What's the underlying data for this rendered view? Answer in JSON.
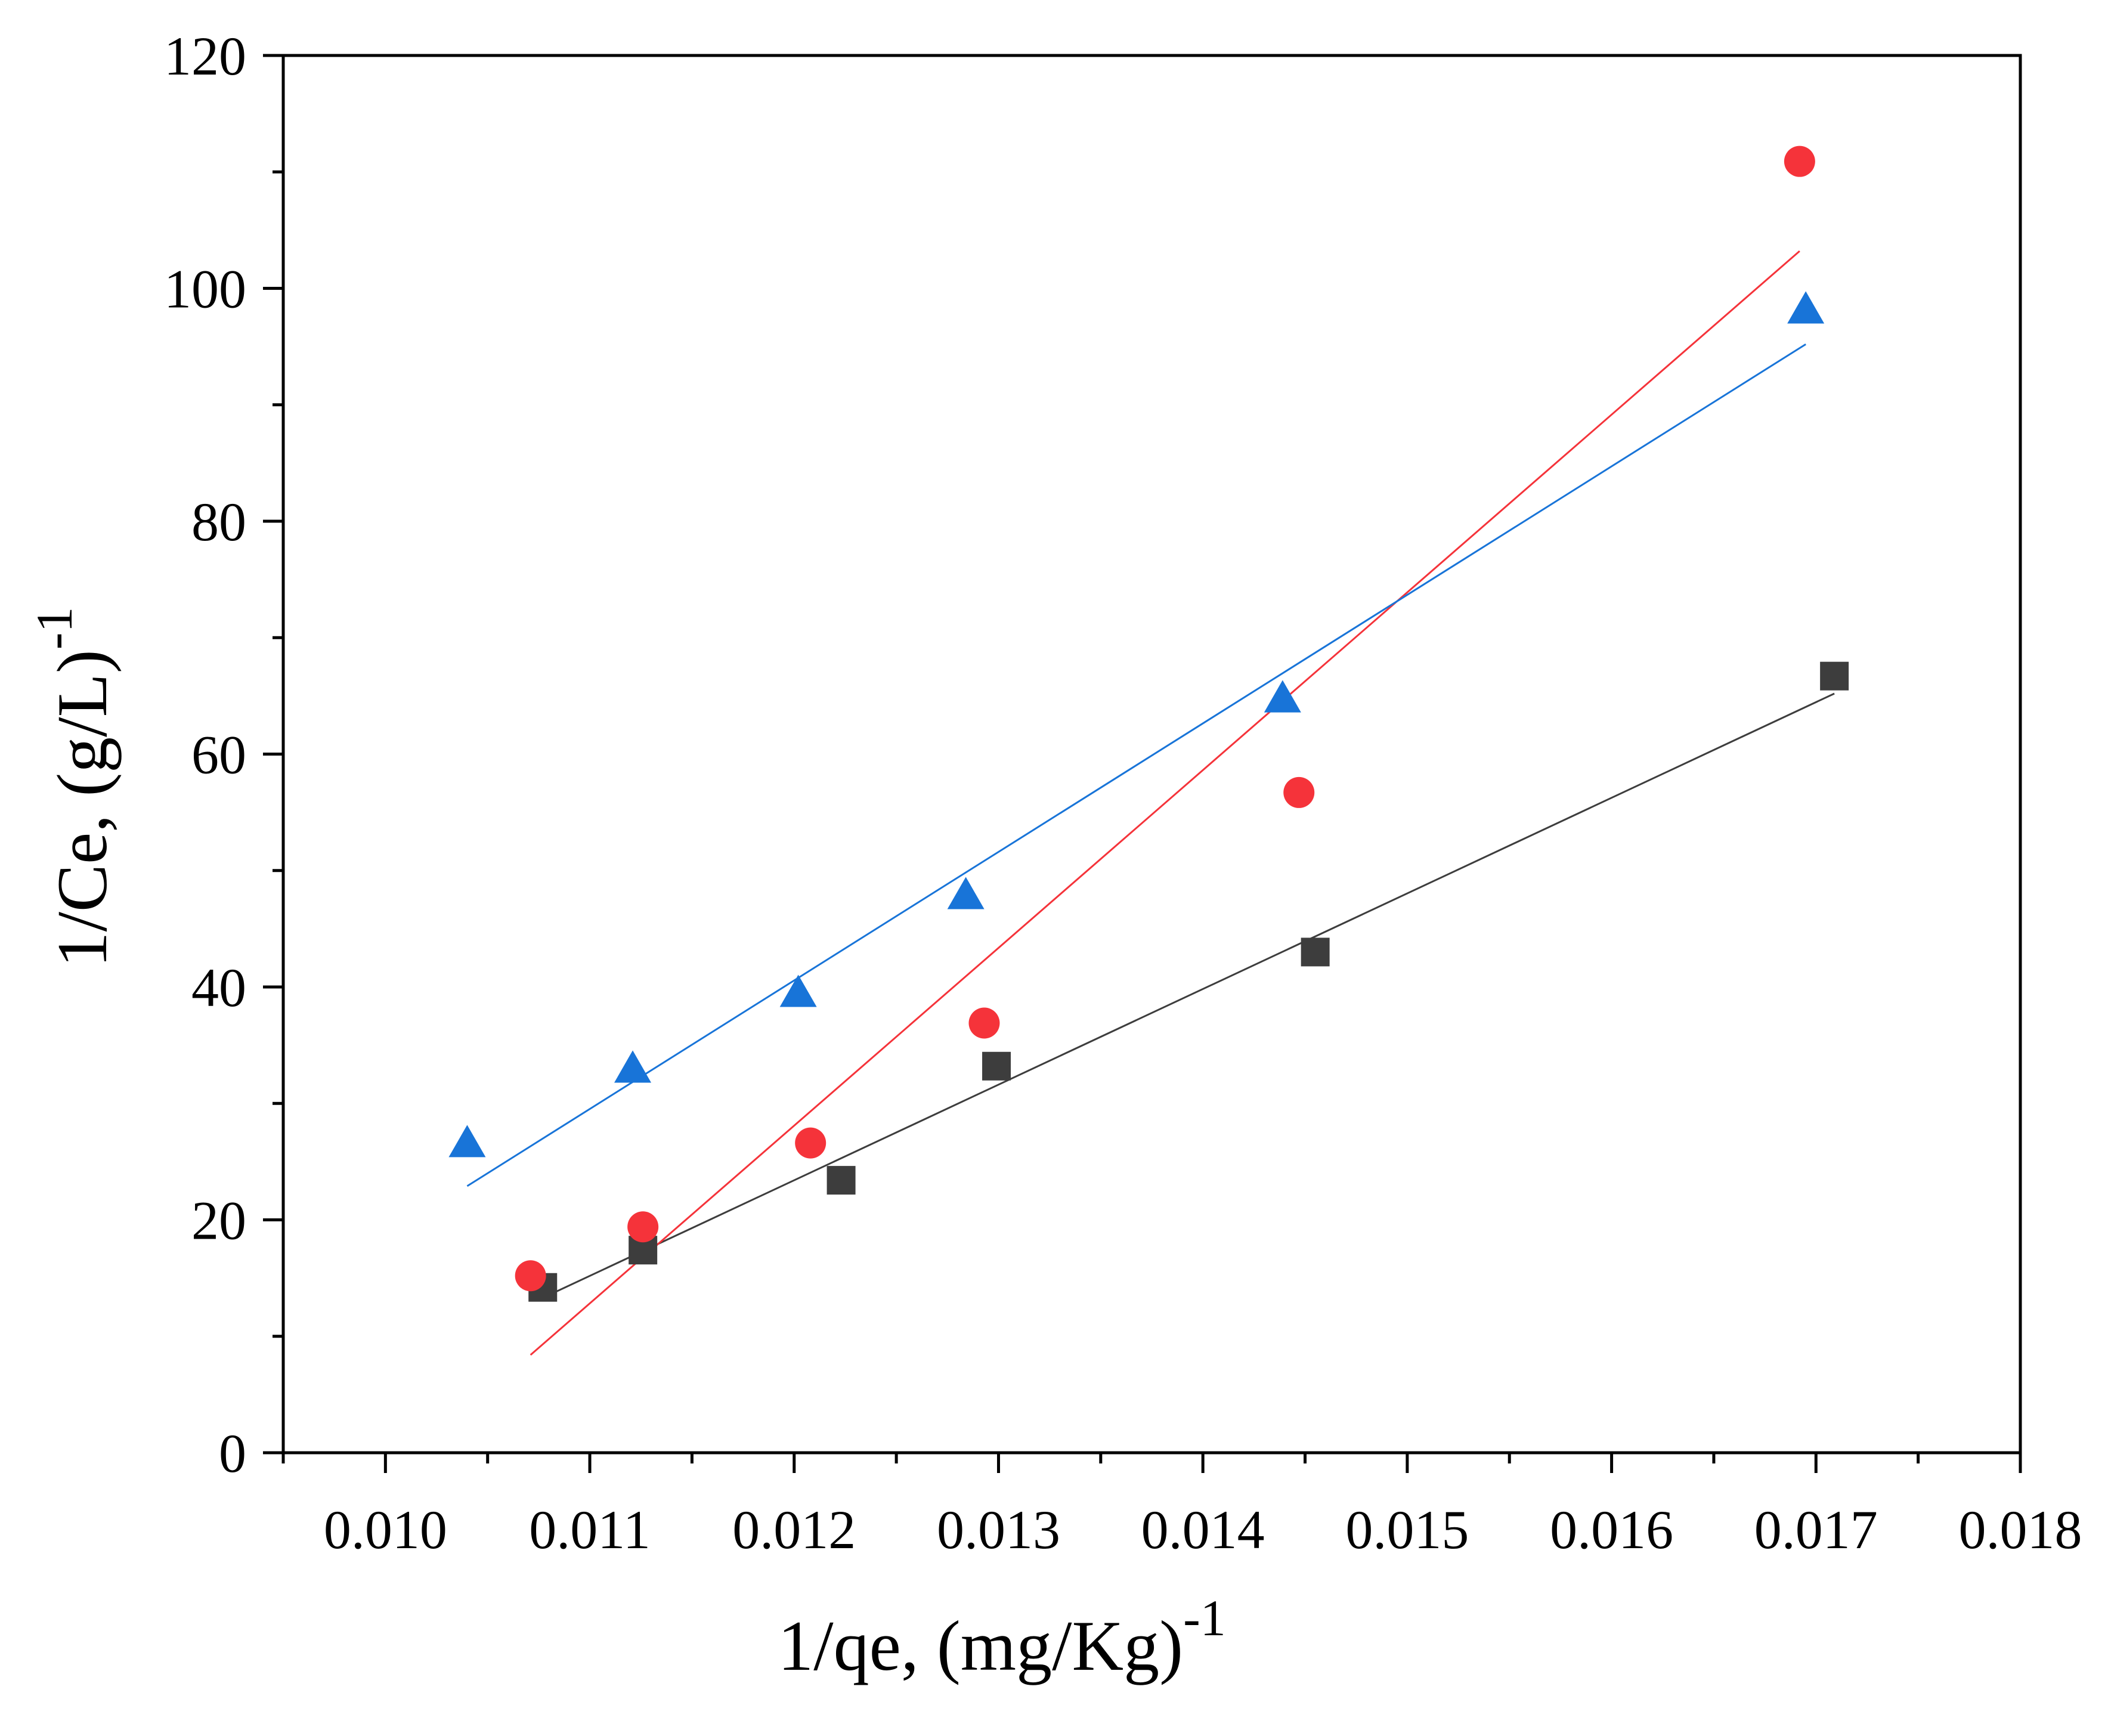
{
  "chart_data": {
    "type": "scatter",
    "title": "",
    "xlabel": {
      "base": "1/qe, (mg/Kg)",
      "superscript": "-1"
    },
    "ylabel": {
      "base": "1/Ce, (g/L)",
      "superscript": "-1"
    },
    "xlim": [
      0.0095,
      0.018
    ],
    "ylim": [
      0,
      120
    ],
    "x_major_ticks": [
      0.01,
      0.011,
      0.012,
      0.013,
      0.014,
      0.015,
      0.016,
      0.017,
      0.018
    ],
    "x_tick_labels": [
      "0.010",
      "0.011",
      "0.012",
      "0.013",
      "0.014",
      "0.015",
      "0.016",
      "0.017",
      "0.018"
    ],
    "y_major_ticks": [
      0,
      20,
      40,
      60,
      80,
      100,
      120
    ],
    "y_tick_labels": [
      "0",
      "20",
      "40",
      "60",
      "80",
      "100",
      "120"
    ],
    "grid": false,
    "legend": "none",
    "series": [
      {
        "name": "series-square",
        "marker": "square",
        "color": "#3d3d3d",
        "points": [
          [
            0.01077,
            14.2
          ],
          [
            0.01126,
            17.4
          ],
          [
            0.01223,
            23.4
          ],
          [
            0.01299,
            33.2
          ],
          [
            0.01455,
            43.0
          ],
          [
            0.01709,
            66.7
          ]
        ],
        "fit_line": {
          "color": "#3d3d3d",
          "start": [
            0.01077,
            13.3
          ],
          "end": [
            0.01709,
            65.2
          ]
        }
      },
      {
        "name": "series-circle",
        "marker": "circle",
        "color": "#f5333a",
        "points": [
          [
            0.01071,
            15.2
          ],
          [
            0.01126,
            19.4
          ],
          [
            0.01208,
            26.6
          ],
          [
            0.01293,
            36.9
          ],
          [
            0.01447,
            56.7
          ],
          [
            0.01692,
            110.9
          ]
        ],
        "fit_line": {
          "color": "#f5333a",
          "start": [
            0.01071,
            8.4
          ],
          "end": [
            0.01692,
            103.2
          ]
        }
      },
      {
        "name": "series-triangle",
        "marker": "triangle",
        "color": "#1874d8",
        "points": [
          [
            0.0104,
            26.5
          ],
          [
            0.01121,
            32.9
          ],
          [
            0.01202,
            39.4
          ],
          [
            0.01284,
            47.8
          ],
          [
            0.01439,
            64.7
          ],
          [
            0.01695,
            98.1
          ]
        ],
        "fit_line": {
          "color": "#1874d8",
          "start": [
            0.0104,
            22.9
          ],
          "end": [
            0.01695,
            95.2
          ]
        }
      }
    ]
  }
}
